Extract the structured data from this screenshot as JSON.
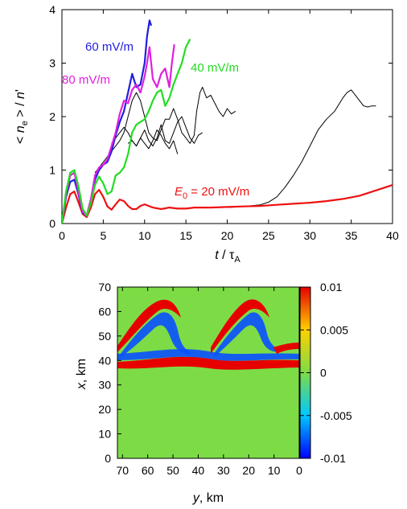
{
  "chart_data": [
    {
      "type": "line",
      "xlabel": "t / τA",
      "ylabel": "< ne > / n'",
      "xlim": [
        0,
        40
      ],
      "ylim": [
        0,
        4
      ],
      "xticks": [
        "0",
        "5",
        "10",
        "15",
        "20",
        "25",
        "30",
        "35",
        "40"
      ],
      "yticks": [
        "0",
        "1",
        "2",
        "3",
        "4"
      ],
      "annotations": [
        {
          "text": "60 mV/m",
          "color": "#1f1fdd"
        },
        {
          "text": "80 mV/m",
          "color": "#e020e0"
        },
        {
          "text": "40 mV/m",
          "color": "#22dd22"
        },
        {
          "text": "E0 = 20 mV/m",
          "color": "#ee1111"
        }
      ],
      "series": [
        {
          "name": "20 mV/m",
          "color": "#ee1111",
          "width": 2.2,
          "x": [
            0,
            0.5,
            1,
            1.5,
            2,
            2.5,
            3,
            3.5,
            4,
            4.5,
            5,
            5.5,
            6,
            6.5,
            7,
            7.5,
            8,
            8.5,
            9,
            9.5,
            10,
            11,
            12,
            13,
            14,
            15,
            16,
            17,
            18,
            20,
            22,
            24,
            26,
            28,
            30,
            32,
            34,
            36,
            38,
            40
          ],
          "y": [
            0,
            0.3,
            0.55,
            0.6,
            0.4,
            0.18,
            0.12,
            0.3,
            0.55,
            0.63,
            0.5,
            0.32,
            0.26,
            0.36,
            0.45,
            0.42,
            0.33,
            0.27,
            0.27,
            0.33,
            0.36,
            0.3,
            0.27,
            0.3,
            0.28,
            0.28,
            0.3,
            0.3,
            0.3,
            0.31,
            0.32,
            0.33,
            0.35,
            0.37,
            0.39,
            0.42,
            0.46,
            0.52,
            0.62,
            0.72
          ]
        },
        {
          "name": "60 mV/m",
          "color": "#1f1fdd",
          "width": 2.2,
          "x": [
            0,
            0.5,
            1,
            1.5,
            2,
            2.5,
            3,
            3.5,
            4,
            4.5,
            5,
            5.5,
            6,
            6.5,
            7,
            7.5,
            8,
            8.5,
            9,
            9.5,
            10,
            10.3,
            10.6,
            10.8
          ],
          "y": [
            0,
            0.5,
            0.78,
            0.82,
            0.55,
            0.2,
            0.15,
            0.45,
            0.82,
            1.0,
            1.1,
            1.15,
            1.35,
            1.65,
            1.9,
            2.1,
            2.45,
            2.8,
            2.55,
            2.6,
            3.0,
            3.5,
            3.8,
            3.7
          ]
        },
        {
          "name": "80 mV/m",
          "color": "#e020e0",
          "width": 2.2,
          "x": [
            0,
            0.5,
            1,
            1.5,
            2,
            2.5,
            3,
            3.5,
            4,
            4.5,
            5,
            5.5,
            6,
            6.5,
            7,
            7.5,
            8,
            8.5,
            9,
            9.5,
            10,
            10.3,
            10.6,
            11,
            11.5,
            12,
            12.5,
            13,
            13.3,
            13.6
          ],
          "y": [
            0,
            0.55,
            0.9,
            0.95,
            0.6,
            0.22,
            0.15,
            0.45,
            0.9,
            1.05,
            1.1,
            1.2,
            1.45,
            1.7,
            2.05,
            2.3,
            2.25,
            2.5,
            2.6,
            2.45,
            2.75,
            3.0,
            3.3,
            2.7,
            2.55,
            2.8,
            2.9,
            2.55,
            3.0,
            3.35
          ]
        },
        {
          "name": "40 mV/m",
          "color": "#22dd22",
          "width": 2.2,
          "x": [
            0,
            0.5,
            1,
            1.5,
            2,
            2.5,
            3,
            3.5,
            4,
            4.5,
            5,
            5.5,
            6,
            6.5,
            7,
            7.5,
            8,
            8.5,
            9,
            9.5,
            10,
            10.5,
            11,
            11.5,
            12,
            12.5,
            13,
            13.5,
            14,
            14.5,
            15,
            15.5
          ],
          "y": [
            0,
            0.6,
            0.95,
            1.0,
            0.7,
            0.28,
            0.15,
            0.38,
            0.72,
            0.88,
            0.75,
            0.55,
            0.6,
            0.9,
            0.95,
            1.05,
            1.3,
            1.7,
            1.85,
            1.9,
            1.95,
            2.1,
            2.3,
            2.45,
            2.5,
            2.2,
            2.35,
            2.6,
            2.8,
            3.0,
            3.3,
            3.45
          ]
        },
        {
          "name": "thin-a",
          "color": "#000000",
          "width": 1,
          "x": [
            4,
            5,
            6,
            7,
            7.5,
            8,
            8.5,
            9,
            9.5,
            10,
            10.5,
            11,
            11.5,
            12,
            12.5,
            13,
            13.5,
            14,
            14.5,
            15,
            15.5,
            16,
            16.3,
            16.7,
            17,
            17.5,
            18,
            18.5,
            19,
            19.5,
            20,
            20.5,
            21
          ],
          "y": [
            0.95,
            1.15,
            1.35,
            1.55,
            1.7,
            2.0,
            2.3,
            2.45,
            2.3,
            2.0,
            1.7,
            1.6,
            1.55,
            1.75,
            1.95,
            1.95,
            2.15,
            1.95,
            1.7,
            1.6,
            1.5,
            1.65,
            2.1,
            2.45,
            2.55,
            2.35,
            2.4,
            2.25,
            2.1,
            2.0,
            2.15,
            2.05,
            2.1
          ]
        },
        {
          "name": "thin-b",
          "color": "#000000",
          "width": 1,
          "x": [
            6,
            7,
            7.5,
            8,
            8.5,
            9,
            9.5,
            10,
            10.5,
            11,
            11.5,
            12,
            12.5,
            13,
            13.5,
            14,
            14.5,
            15,
            15.5,
            16,
            16.5,
            17
          ],
          "y": [
            1.5,
            1.7,
            1.8,
            1.7,
            1.55,
            1.45,
            1.6,
            1.75,
            1.55,
            1.45,
            1.6,
            1.85,
            1.55,
            1.5,
            1.7,
            1.9,
            2.0,
            1.8,
            1.6,
            1.5,
            1.65,
            1.7
          ]
        },
        {
          "name": "thin-c",
          "color": "#000000",
          "width": 1,
          "x": [
            8,
            8.5,
            9,
            9.5,
            10,
            10.5,
            11,
            11.5,
            12,
            12.5,
            13,
            13.5,
            14
          ],
          "y": [
            1.5,
            1.55,
            1.45,
            1.6,
            1.5,
            1.4,
            1.55,
            1.75,
            1.65,
            1.5,
            1.4,
            1.55,
            1.3
          ]
        },
        {
          "name": "thin-d",
          "color": "#000000",
          "width": 1,
          "x": [
            20,
            22,
            24,
            25,
            26,
            27,
            28,
            29,
            30,
            31,
            32,
            33,
            34,
            34.5,
            35,
            35.5,
            36,
            36.5,
            37,
            37.5,
            38
          ],
          "y": [
            0.3,
            0.32,
            0.35,
            0.4,
            0.5,
            0.68,
            0.9,
            1.15,
            1.45,
            1.75,
            1.95,
            2.1,
            2.35,
            2.45,
            2.5,
            2.4,
            2.3,
            2.2,
            2.18,
            2.2,
            2.2
          ]
        }
      ]
    },
    {
      "type": "heatmap",
      "xlabel": "y, km",
      "ylabel": "x, km",
      "xlim": [
        72,
        0
      ],
      "ylim": [
        0,
        70
      ],
      "xticks": [
        "70",
        "60",
        "50",
        "40",
        "30",
        "20",
        "10",
        "0"
      ],
      "yticks": [
        "0",
        "10",
        "20",
        "30",
        "40",
        "50",
        "60",
        "70"
      ],
      "colorbar_ticks": [
        "0.01",
        "0.005",
        "0",
        "-0.005",
        "-0.01"
      ],
      "clim": [
        -0.01,
        0.01
      ],
      "description_of_field": "background ~0; two crescent-shaped red/blue band pairs peaking near x=65 at y≈57 and y≈22; red band near x≈39 across the width"
    }
  ]
}
